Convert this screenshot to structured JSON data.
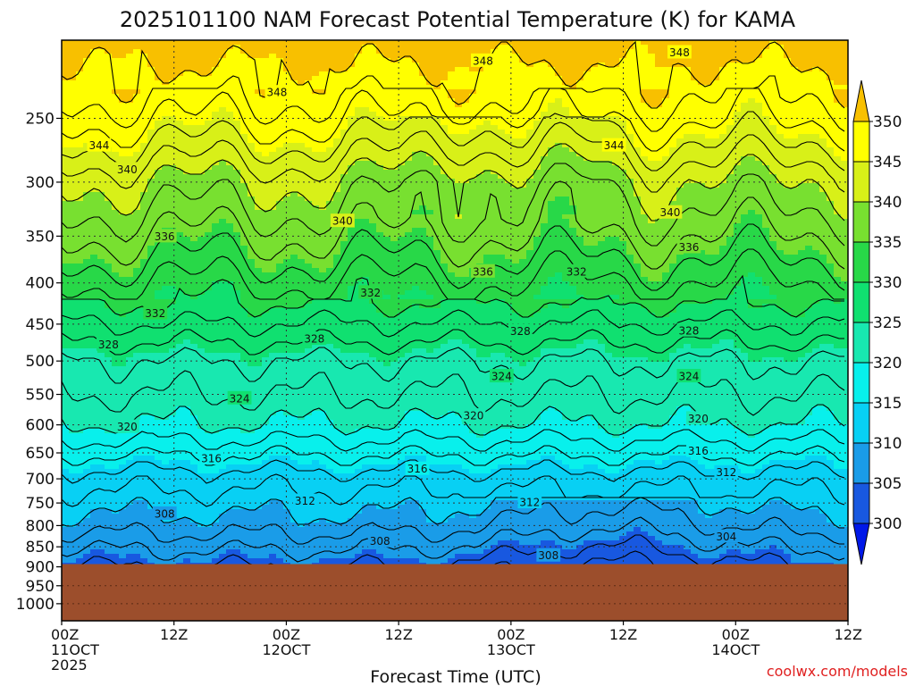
{
  "chart_data": {
    "type": "heatmap",
    "title": "2025101100 NAM Forecast Potential Temperature (K) for KAMA",
    "xlabel": "Forecast Time (UTC)",
    "ylabel": "",
    "credit": "coolwx.com/models",
    "x_axis": {
      "unit": "forecast hour",
      "range": [
        0,
        84
      ],
      "ticks": [
        {
          "hour": 0,
          "line1": "00Z",
          "line2": "11OCT",
          "line3": "2025"
        },
        {
          "hour": 12,
          "line1": "12Z",
          "line2": "",
          "line3": ""
        },
        {
          "hour": 24,
          "line1": "00Z",
          "line2": "12OCT",
          "line3": ""
        },
        {
          "hour": 36,
          "line1": "12Z",
          "line2": "",
          "line3": ""
        },
        {
          "hour": 48,
          "line1": "00Z",
          "line2": "13OCT",
          "line3": ""
        },
        {
          "hour": 60,
          "line1": "12Z",
          "line2": "",
          "line3": ""
        },
        {
          "hour": 72,
          "line1": "00Z",
          "line2": "14OCT",
          "line3": ""
        },
        {
          "hour": 84,
          "line1": "12Z",
          "line2": "",
          "line3": ""
        }
      ]
    },
    "y_axis": {
      "unit": "hPa",
      "scale": "log",
      "inverted": true,
      "range": [
        1050,
        200
      ],
      "ticks": [
        250,
        300,
        350,
        400,
        450,
        500,
        550,
        600,
        650,
        700,
        750,
        800,
        850,
        900,
        950,
        1000
      ]
    },
    "grid": true,
    "colorbar": {
      "placement": "right",
      "levels": [
        300,
        305,
        310,
        315,
        320,
        325,
        330,
        335,
        340,
        345,
        350
      ],
      "colors": [
        "#0018e8",
        "#1858e0",
        "#1a9ce8",
        "#08d0f4",
        "#08f0ec",
        "#18e8b0",
        "#10e070",
        "#28d848",
        "#78e030",
        "#d8f018",
        "#ffff00",
        "#f8c000"
      ],
      "extend": "both"
    },
    "terrain": {
      "color": "#9c4e2c",
      "surface_pressure_hpa": 893
    },
    "contour_interval": 2,
    "contour_labels": [
      {
        "value": "348",
        "hour": 45,
        "p": 212
      },
      {
        "value": "348",
        "hour": 66,
        "p": 207
      },
      {
        "value": "348",
        "hour": 23,
        "p": 232
      },
      {
        "value": "344",
        "hour": 4,
        "p": 270
      },
      {
        "value": "344",
        "hour": 59,
        "p": 270
      },
      {
        "value": "340",
        "hour": 7,
        "p": 289
      },
      {
        "value": "340",
        "hour": 30,
        "p": 335
      },
      {
        "value": "340",
        "hour": 65,
        "p": 327
      },
      {
        "value": "336",
        "hour": 11,
        "p": 350
      },
      {
        "value": "336",
        "hour": 67,
        "p": 361
      },
      {
        "value": "336",
        "hour": 45,
        "p": 387
      },
      {
        "value": "332",
        "hour": 55,
        "p": 387
      },
      {
        "value": "332",
        "hour": 33,
        "p": 411
      },
      {
        "value": "332",
        "hour": 10,
        "p": 436
      },
      {
        "value": "328",
        "hour": 5,
        "p": 477
      },
      {
        "value": "328",
        "hour": 27,
        "p": 469
      },
      {
        "value": "328",
        "hour": 49,
        "p": 459
      },
      {
        "value": "328",
        "hour": 67,
        "p": 458
      },
      {
        "value": "324",
        "hour": 47,
        "p": 522
      },
      {
        "value": "324",
        "hour": 67,
        "p": 522
      },
      {
        "value": "324",
        "hour": 19,
        "p": 556
      },
      {
        "value": "320",
        "hour": 44,
        "p": 584
      },
      {
        "value": "320",
        "hour": 68,
        "p": 589
      },
      {
        "value": "320",
        "hour": 7,
        "p": 603
      },
      {
        "value": "316",
        "hour": 68,
        "p": 646
      },
      {
        "value": "316",
        "hour": 16,
        "p": 660
      },
      {
        "value": "316",
        "hour": 38,
        "p": 680
      },
      {
        "value": "312",
        "hour": 71,
        "p": 687
      },
      {
        "value": "312",
        "hour": 26,
        "p": 745
      },
      {
        "value": "312",
        "hour": 50,
        "p": 748
      },
      {
        "value": "308",
        "hour": 11,
        "p": 773
      },
      {
        "value": "308",
        "hour": 34,
        "p": 836
      },
      {
        "value": "308",
        "hour": 52,
        "p": 871
      },
      {
        "value": "304",
        "hour": 71,
        "p": 825
      }
    ]
  }
}
